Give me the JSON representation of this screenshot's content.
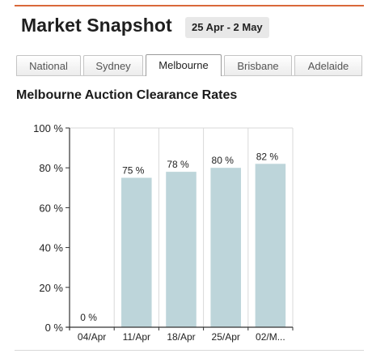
{
  "header": {
    "title": "Market Snapshot",
    "date_range": "25 Apr - 2 May"
  },
  "tabs": [
    {
      "label": "National",
      "active": false
    },
    {
      "label": "Sydney",
      "active": false
    },
    {
      "label": "Melbourne",
      "active": true
    },
    {
      "label": "Brisbane",
      "active": false
    },
    {
      "label": "Adelaide",
      "active": false
    }
  ],
  "colors": {
    "accent": "#d9683a",
    "bar": "#bdd5da",
    "axis": "#333333",
    "grid": "#d9d9d9"
  },
  "chart_data": {
    "type": "bar",
    "title": "Melbourne Auction Clearance Rates",
    "categories": [
      "04/Apr",
      "11/Apr",
      "18/Apr",
      "25/Apr",
      "02/M..."
    ],
    "values": [
      0,
      75,
      78,
      80,
      82
    ],
    "data_labels": [
      "0 %",
      "75 %",
      "78 %",
      "80 %",
      "82 %"
    ],
    "y_ticks": [
      0,
      20,
      40,
      60,
      80,
      100
    ],
    "y_tick_labels": [
      "0 %",
      "20 %",
      "40 %",
      "60 %",
      "80 %",
      "100 %"
    ],
    "ylim": [
      0,
      100
    ],
    "xlabel": "",
    "ylabel": "",
    "grid": true
  }
}
